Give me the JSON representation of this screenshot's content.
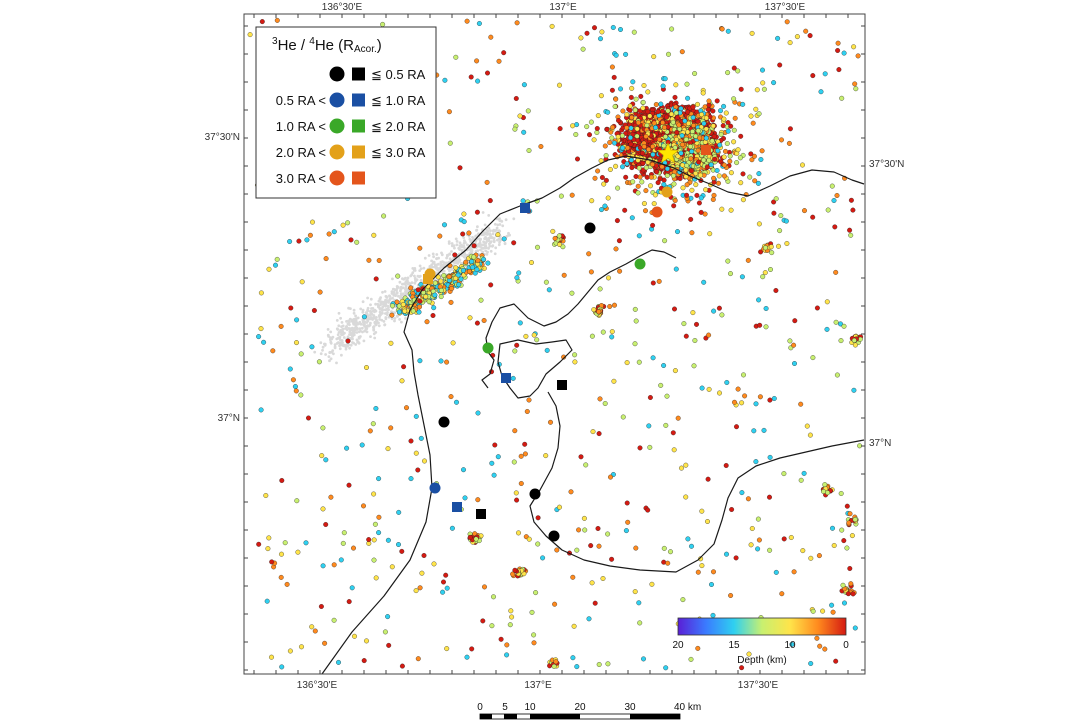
{
  "map": {
    "axes": {
      "top_ticks": [
        "136°30'E",
        "137°E",
        "137°30'E"
      ],
      "bottom_ticks": [
        "136°30'E",
        "137°E",
        "137°30'E"
      ],
      "left_ticks": [
        "37°30'N",
        "37°N"
      ],
      "right_ticks": [
        "37°30'N",
        "37°N"
      ]
    },
    "legend": {
      "title_parts": [
        "3",
        "He / ",
        "4",
        "He (R",
        "Acor.",
        ")"
      ],
      "rows": [
        {
          "lower": "",
          "upper": "≦ 0.5 RA",
          "color": "#000000"
        },
        {
          "lower": "0.5 RA <",
          "upper": "≦ 1.0 RA",
          "color": "#1a4fa3"
        },
        {
          "lower": "1.0 RA <",
          "upper": "≦ 2.0 RA",
          "color": "#3aa828"
        },
        {
          "lower": "2.0 RA <",
          "upper": "≦ 3.0 RA",
          "color": "#e3a11a"
        },
        {
          "lower": "3.0 RA <",
          "upper": "",
          "color": "#e4551c"
        }
      ]
    },
    "depth_scale": {
      "label": "Depth (km)",
      "ticks": [
        "20",
        "15",
        "10",
        "0"
      ],
      "range_km": [
        0,
        20
      ],
      "colors": [
        "#5a1fd6",
        "#3a7bff",
        "#2fd0f0",
        "#c8f070",
        "#ffe44a",
        "#ff8a1e",
        "#d41a12"
      ]
    },
    "distance_scale": {
      "labels": [
        "0",
        "5",
        "10",
        "20",
        "30",
        "40 km"
      ]
    },
    "epicenter": {
      "symbol": "star",
      "color": "#ffe600"
    },
    "samples": [
      {
        "type": "circle",
        "color": "#000000"
      },
      {
        "type": "circle",
        "color": "#000000"
      },
      {
        "type": "circle",
        "color": "#000000"
      },
      {
        "type": "circle",
        "color": "#000000"
      },
      {
        "type": "circle",
        "color": "#1a4fa3"
      },
      {
        "type": "circle",
        "color": "#3aa828"
      },
      {
        "type": "circle",
        "color": "#3aa828"
      },
      {
        "type": "circle",
        "color": "#e3a11a"
      },
      {
        "type": "circle",
        "color": "#e3a11a"
      },
      {
        "type": "circle",
        "color": "#e4551c"
      },
      {
        "type": "square",
        "color": "#000000"
      },
      {
        "type": "square",
        "color": "#000000"
      },
      {
        "type": "square",
        "color": "#1a4fa3"
      },
      {
        "type": "square",
        "color": "#1a4fa3"
      },
      {
        "type": "square",
        "color": "#1a4fa3"
      },
      {
        "type": "square",
        "color": "#e3a11a"
      },
      {
        "type": "square",
        "color": "#e4551c"
      }
    ]
  }
}
